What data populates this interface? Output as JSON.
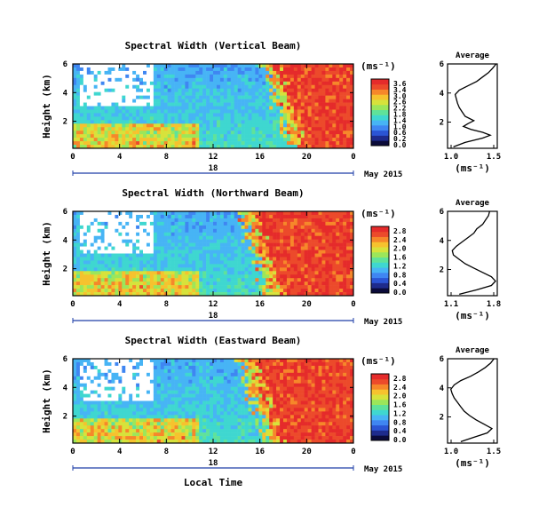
{
  "colorscale": {
    "colors": [
      "#0b0b3a",
      "#1e2b8c",
      "#2b55d4",
      "#3f86f2",
      "#47b4f5",
      "#3fd7d0",
      "#5fe29a",
      "#9ce65a",
      "#d7e23b",
      "#f6c22e",
      "#f6872a",
      "#ec4a2b",
      "#e52b2b"
    ],
    "unit_label": "(ms⁻¹)"
  },
  "panels": [
    {
      "title": "Spectral Width (Vertical Beam)",
      "ylabel": "Height (km)",
      "y_ticks": [
        "6",
        "4",
        "2"
      ],
      "x_ticks": [
        "0",
        "4",
        "8",
        "12",
        "16",
        "20",
        "0"
      ],
      "day_label": "18",
      "date_label": "May 2015",
      "colorbar_ticks": [
        "3.6",
        "3.4",
        "3.0",
        "2.6",
        "2.2",
        "1.8",
        "1.4",
        "1.0",
        "0.6",
        "0.2",
        "0.0"
      ],
      "avg_title": "Average",
      "avg_xticks": [
        "1.0",
        "1.5"
      ],
      "avg_yticks": [
        "6",
        "4",
        "2"
      ],
      "avg_xunit": "(ms⁻¹)",
      "avg_profile": {
        "xlim": [
          0.95,
          1.8
        ],
        "ylim": [
          0.2,
          6.0
        ],
        "height_km": [
          0.3,
          0.6,
          0.9,
          1.1,
          1.3,
          1.5,
          1.7,
          1.9,
          2.1,
          2.4,
          2.7,
          3.0,
          3.3,
          3.6,
          3.9,
          4.2,
          4.5,
          4.8,
          5.1,
          5.4,
          5.7,
          6.0
        ],
        "width": [
          1.05,
          1.25,
          1.55,
          1.68,
          1.55,
          1.35,
          1.22,
          1.3,
          1.4,
          1.25,
          1.2,
          1.15,
          1.12,
          1.1,
          1.08,
          1.15,
          1.3,
          1.45,
          1.55,
          1.65,
          1.72,
          1.78
        ]
      }
    },
    {
      "title": "Spectral Width (Northward Beam)",
      "ylabel": "Height (km)",
      "y_ticks": [
        "6",
        "4",
        "2"
      ],
      "x_ticks": [
        "0",
        "4",
        "8",
        "12",
        "16",
        "20",
        "0"
      ],
      "day_label": "18",
      "date_label": "May 2015",
      "colorbar_ticks": [
        "2.8",
        "2.4",
        "2.0",
        "1.6",
        "1.2",
        "0.8",
        "0.4",
        "0.0"
      ],
      "avg_title": "Average",
      "avg_xticks": [
        "1.1",
        "1.8"
      ],
      "avg_yticks": [
        "6",
        "4",
        "2"
      ],
      "avg_xunit": "(ms⁻¹)",
      "avg_profile": {
        "xlim": [
          1.0,
          1.85
        ],
        "ylim": [
          0.2,
          6.0
        ],
        "height_km": [
          0.3,
          0.6,
          0.9,
          1.2,
          1.5,
          1.8,
          2.1,
          2.4,
          2.7,
          3.0,
          3.3,
          3.6,
          3.9,
          4.2,
          4.5,
          4.8,
          5.1,
          5.4,
          5.7,
          6.0
        ],
        "width": [
          1.2,
          1.5,
          1.75,
          1.82,
          1.75,
          1.6,
          1.45,
          1.3,
          1.2,
          1.1,
          1.08,
          1.15,
          1.25,
          1.35,
          1.45,
          1.5,
          1.6,
          1.65,
          1.7,
          1.72
        ]
      }
    },
    {
      "title": "Spectral Width (Eastward Beam)",
      "ylabel": "Height (km)",
      "y_ticks": [
        "6",
        "4",
        "2"
      ],
      "x_ticks": [
        "0",
        "4",
        "8",
        "12",
        "16",
        "20",
        "0"
      ],
      "day_label": "18",
      "date_label": "May 2015",
      "colorbar_ticks": [
        "2.8",
        "2.4",
        "2.0",
        "1.6",
        "1.2",
        "0.8",
        "0.4",
        "0.0"
      ],
      "avg_title": "Average",
      "avg_xticks": [
        "1.0",
        "1.5"
      ],
      "avg_yticks": [
        "6",
        "4",
        "2"
      ],
      "avg_xunit": "(ms⁻¹)",
      "avg_profile": {
        "xlim": [
          0.95,
          1.7
        ],
        "ylim": [
          0.2,
          6.0
        ],
        "height_km": [
          0.3,
          0.6,
          0.9,
          1.2,
          1.5,
          1.8,
          2.1,
          2.4,
          2.7,
          3.0,
          3.3,
          3.6,
          3.9,
          4.2,
          4.5,
          4.8,
          5.1,
          5.4,
          5.7,
          6.0
        ],
        "width": [
          1.15,
          1.35,
          1.55,
          1.62,
          1.5,
          1.38,
          1.28,
          1.2,
          1.15,
          1.1,
          1.05,
          1.02,
          1.0,
          1.05,
          1.15,
          1.3,
          1.42,
          1.52,
          1.6,
          1.65
        ]
      }
    }
  ],
  "x_axis_label": "Local Time",
  "chart_data": [
    {
      "type": "heatmap",
      "title": "Spectral Width (Vertical Beam)",
      "xlabel": "",
      "ylabel": "Height (km)",
      "ylim": [
        0.2,
        6.0
      ],
      "xlim_hours": [
        0,
        24
      ],
      "colorbar_range": [
        0.0,
        3.6
      ],
      "colorbar_unit": "(ms⁻¹)"
    },
    {
      "type": "line",
      "title": "Average",
      "xlabel": "(ms⁻¹)",
      "ylabel": "",
      "xlim": [
        0.95,
        1.8
      ],
      "ylim": [
        0.2,
        6.0
      ]
    },
    {
      "type": "heatmap",
      "title": "Spectral Width (Northward Beam)",
      "xlabel": "",
      "ylabel": "Height (km)",
      "ylim": [
        0.2,
        6.0
      ],
      "xlim_hours": [
        0,
        24
      ],
      "colorbar_range": [
        0.0,
        2.8
      ],
      "colorbar_unit": "(ms⁻¹)"
    },
    {
      "type": "line",
      "title": "Average",
      "xlabel": "(ms⁻¹)",
      "ylabel": "",
      "xlim": [
        1.0,
        1.85
      ],
      "ylim": [
        0.2,
        6.0
      ]
    },
    {
      "type": "heatmap",
      "title": "Spectral Width (Eastward Beam)",
      "xlabel": "Local Time",
      "ylabel": "Height (km)",
      "ylim": [
        0.2,
        6.0
      ],
      "xlim_hours": [
        0,
        24
      ],
      "colorbar_range": [
        0.0,
        2.8
      ],
      "colorbar_unit": "(ms⁻¹)"
    },
    {
      "type": "line",
      "title": "Average",
      "xlabel": "(ms⁻¹)",
      "ylabel": "",
      "xlim": [
        0.95,
        1.7
      ],
      "ylim": [
        0.2,
        6.0
      ]
    }
  ]
}
